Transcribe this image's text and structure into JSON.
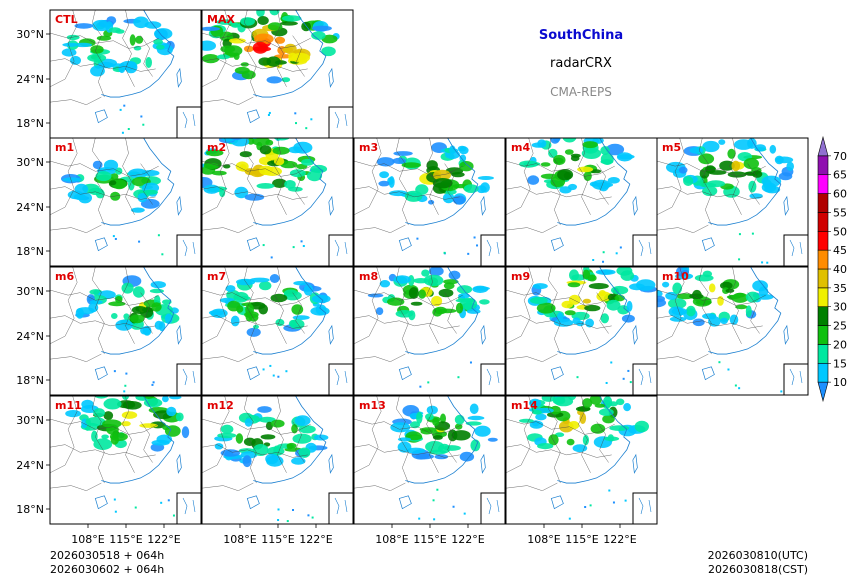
{
  "header": {
    "region": "SouthChina",
    "product": "radarCRX",
    "system": "CMA-REPS"
  },
  "footer": {
    "init_line1": "2026030518  +  064h",
    "init_line2": "2026030602  +  064h",
    "valid_utc": "2026030810(UTC)",
    "valid_cst": "2026030818(CST)"
  },
  "colors": {
    "title": "#0a0ad0",
    "member_label": "#e00000"
  },
  "chart_data": {
    "type": "heatmap",
    "title": "SouthChina radarCRX CMA-REPS",
    "xlabel": "",
    "ylabel": "",
    "x_ticks": [
      "108°E",
      "115°E",
      "122°E"
    ],
    "y_ticks": [
      "30°N",
      "24°N",
      "18°N"
    ],
    "panels": [
      {
        "label": "CTL",
        "intensity": 0.45,
        "cx": 0.45,
        "cy": 0.28
      },
      {
        "label": "MAX",
        "intensity": 1.0,
        "cx": 0.45,
        "cy": 0.28
      },
      {
        "label": "m1",
        "intensity": 0.35,
        "cx": 0.45,
        "cy": 0.38
      },
      {
        "label": "m2",
        "intensity": 0.85,
        "cx": 0.35,
        "cy": 0.22
      },
      {
        "label": "m3",
        "intensity": 0.55,
        "cx": 0.55,
        "cy": 0.28
      },
      {
        "label": "m4",
        "intensity": 0.55,
        "cx": 0.45,
        "cy": 0.2
      },
      {
        "label": "m5",
        "intensity": 0.6,
        "cx": 0.5,
        "cy": 0.25
      },
      {
        "label": "m6",
        "intensity": 0.45,
        "cx": 0.55,
        "cy": 0.32
      },
      {
        "label": "m7",
        "intensity": 0.5,
        "cx": 0.45,
        "cy": 0.3
      },
      {
        "label": "m8",
        "intensity": 0.55,
        "cx": 0.5,
        "cy": 0.25
      },
      {
        "label": "m9",
        "intensity": 0.7,
        "cx": 0.55,
        "cy": 0.22
      },
      {
        "label": "m10",
        "intensity": 0.55,
        "cx": 0.35,
        "cy": 0.22
      },
      {
        "label": "m11",
        "intensity": 0.7,
        "cx": 0.55,
        "cy": 0.18
      },
      {
        "label": "m12",
        "intensity": 0.5,
        "cx": 0.45,
        "cy": 0.32
      },
      {
        "label": "m13",
        "intensity": 0.45,
        "cx": 0.6,
        "cy": 0.28
      },
      {
        "label": "m14",
        "intensity": 0.7,
        "cx": 0.5,
        "cy": 0.2
      }
    ],
    "colorbar": {
      "levels": [
        10,
        15,
        20,
        25,
        30,
        35,
        40,
        45,
        50,
        55,
        60,
        65,
        70
      ],
      "colors": [
        "#1e90ff",
        "#00c8ff",
        "#00e8a0",
        "#10c010",
        "#008000",
        "#f0f000",
        "#e0c000",
        "#ff8c00",
        "#ff0000",
        "#d00000",
        "#b00000",
        "#ff00ff",
        "#9010b0",
        "#9070d0"
      ],
      "extend": "both"
    }
  }
}
